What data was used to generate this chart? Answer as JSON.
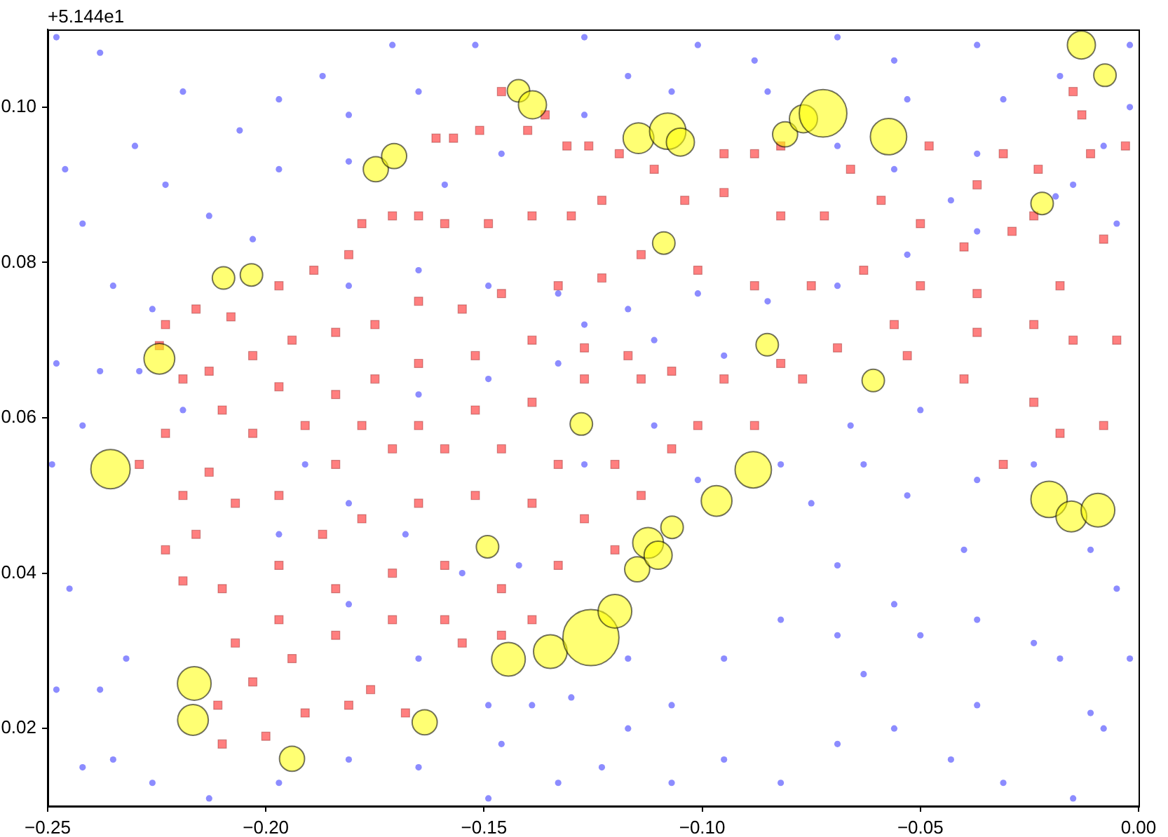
{
  "chart_data": {
    "type": "bubble",
    "annotations": [
      "+5.144e1"
    ],
    "xlim": [
      -0.25,
      0.0
    ],
    "ylim": [
      0.01,
      0.11
    ],
    "xticks": [
      {
        "value": -0.25,
        "label": "−0.25"
      },
      {
        "value": -0.2,
        "label": "−0.20"
      },
      {
        "value": -0.15,
        "label": "−0.15"
      },
      {
        "value": -0.1,
        "label": "−0.10"
      },
      {
        "value": -0.05,
        "label": "−0.05"
      },
      {
        "value": 0.0,
        "label": "0.00"
      }
    ],
    "yticks": [
      {
        "value": 0.02,
        "label": "0.02"
      },
      {
        "value": 0.04,
        "label": "0.04"
      },
      {
        "value": 0.06,
        "label": "0.06"
      },
      {
        "value": 0.08,
        "label": "0.08"
      },
      {
        "value": 0.1,
        "label": "0.10"
      }
    ],
    "legend": false,
    "series": [
      {
        "color": "#ffff00",
        "marker": "circle",
        "x": [
          -0.2356,
          -0.2164,
          -0.2167,
          -0.194,
          -0.1636,
          -0.1492,
          -0.1444,
          -0.1348,
          -0.1255,
          -0.12,
          -0.1149,
          -0.1124,
          -0.1101,
          -0.1069,
          -0.0967,
          -0.0883,
          -0.1277,
          -0.1088,
          -0.0851,
          -0.0608,
          -0.0221,
          -0.0205,
          -0.0154,
          -0.0093,
          -0.0131,
          -0.0077,
          -0.1146,
          -0.1079,
          -0.105,
          -0.081,
          -0.0768,
          -0.0723,
          -0.0573,
          -0.1421,
          -0.1389,
          -0.1748,
          -0.1706,
          -0.2097,
          -0.2033,
          -0.2244
        ],
        "values": [
          0.0534,
          0.0258,
          0.0211,
          0.0161,
          0.0208,
          0.0434,
          0.0289,
          0.0299,
          0.0317,
          0.0351,
          0.0405,
          0.0439,
          0.0423,
          0.0459,
          0.0493,
          0.0533,
          0.0592,
          0.0825,
          0.0694,
          0.0648,
          0.0876,
          0.0495,
          0.0473,
          0.0481,
          0.108,
          0.1041,
          0.096,
          0.0969,
          0.0955,
          0.0965,
          0.0985,
          0.0992,
          0.0962,
          0.1021,
          0.1003,
          0.092,
          0.0937,
          0.078,
          0.0784,
          0.0676
        ],
        "sizes": [
          0.49,
          0.36,
          0.3,
          0.2,
          0.2,
          0.16,
          0.36,
          0.36,
          1,
          0.36,
          0.2,
          0.3,
          0.25,
          0.16,
          0.3,
          0.42,
          0.16,
          0.16,
          0.16,
          0.16,
          0.16,
          0.42,
          0.3,
          0.36,
          0.25,
          0.16,
          0.3,
          0.42,
          0.25,
          0.2,
          0.25,
          0.72,
          0.42,
          0.16,
          0.25,
          0.2,
          0.2,
          0.16,
          0.16,
          0.3
        ]
      },
      {
        "type": "scatter",
        "color": "#ff0000",
        "marker": "square",
        "x": [
          -0.146,
          -0.136,
          -0.14,
          -0.151,
          -0.161,
          -0.157,
          -0.131,
          -0.126,
          -0.119,
          -0.095,
          -0.088,
          -0.082,
          -0.066,
          -0.048,
          -0.031,
          -0.015,
          -0.013,
          -0.024,
          -0.037,
          -0.029,
          -0.04,
          -0.05,
          -0.059,
          -0.072,
          -0.082,
          -0.095,
          -0.104,
          -0.111,
          -0.123,
          -0.13,
          -0.139,
          -0.149,
          -0.159,
          -0.165,
          -0.171,
          -0.178,
          -0.181,
          -0.189,
          -0.197,
          -0.208,
          -0.216,
          -0.223,
          -0.2244,
          -0.219,
          -0.213,
          -0.203,
          -0.194,
          -0.184,
          -0.175,
          -0.165,
          -0.155,
          -0.146,
          -0.133,
          -0.123,
          -0.114,
          -0.101,
          -0.088,
          -0.075,
          -0.063,
          -0.05,
          -0.037,
          -0.024,
          -0.015,
          -0.005,
          -0.069,
          -0.082,
          -0.095,
          -0.107,
          -0.117,
          -0.127,
          -0.139,
          -0.152,
          -0.165,
          -0.175,
          -0.184,
          -0.197,
          -0.21,
          -0.223,
          -0.229,
          -0.219,
          -0.213,
          -0.203,
          -0.191,
          -0.178,
          -0.165,
          -0.152,
          -0.139,
          -0.127,
          -0.114,
          -0.101,
          -0.088,
          -0.107,
          -0.12,
          -0.133,
          -0.146,
          -0.159,
          -0.171,
          -0.184,
          -0.197,
          -0.207,
          -0.216,
          -0.223,
          -0.219,
          -0.21,
          -0.197,
          -0.187,
          -0.178,
          -0.165,
          -0.152,
          -0.139,
          -0.127,
          -0.114,
          -0.12,
          -0.133,
          -0.146,
          -0.159,
          -0.171,
          -0.184,
          -0.197,
          -0.207,
          -0.203,
          -0.194,
          -0.184,
          -0.171,
          -0.159,
          -0.146,
          -0.139,
          -0.181,
          -0.191,
          -0.2,
          -0.21,
          -0.176,
          -0.168,
          -0.155,
          -0.211,
          -0.077,
          -0.024,
          -0.018,
          -0.008,
          -0.031,
          -0.053,
          -0.04,
          -0.056,
          -0.037,
          -0.018,
          -0.008,
          -0.023,
          -0.011,
          -0.003
        ],
        "values": [
          0.102,
          0.099,
          0.097,
          0.097,
          0.096,
          0.096,
          0.095,
          0.095,
          0.094,
          0.094,
          0.094,
          0.095,
          0.092,
          0.095,
          0.094,
          0.102,
          0.099,
          0.086,
          0.09,
          0.084,
          0.082,
          0.085,
          0.088,
          0.086,
          0.086,
          0.089,
          0.088,
          0.092,
          0.088,
          0.086,
          0.086,
          0.085,
          0.085,
          0.086,
          0.086,
          0.085,
          0.081,
          0.079,
          0.077,
          0.073,
          0.074,
          0.072,
          0.0693,
          0.065,
          0.066,
          0.068,
          0.07,
          0.071,
          0.072,
          0.075,
          0.074,
          0.076,
          0.077,
          0.078,
          0.081,
          0.079,
          0.077,
          0.077,
          0.079,
          0.077,
          0.076,
          0.072,
          0.07,
          0.07,
          0.069,
          0.067,
          0.065,
          0.066,
          0.068,
          0.069,
          0.07,
          0.068,
          0.067,
          0.065,
          0.063,
          0.064,
          0.061,
          0.058,
          0.054,
          0.05,
          0.053,
          0.058,
          0.059,
          0.059,
          0.059,
          0.061,
          0.062,
          0.065,
          0.065,
          0.059,
          0.059,
          0.056,
          0.054,
          0.054,
          0.056,
          0.056,
          0.056,
          0.054,
          0.05,
          0.049,
          0.045,
          0.043,
          0.039,
          0.038,
          0.041,
          0.045,
          0.047,
          0.049,
          0.05,
          0.049,
          0.047,
          0.05,
          0.043,
          0.041,
          0.038,
          0.041,
          0.04,
          0.038,
          0.034,
          0.031,
          0.026,
          0.029,
          0.032,
          0.034,
          0.034,
          0.032,
          0.034,
          0.023,
          0.022,
          0.019,
          0.018,
          0.025,
          0.022,
          0.031,
          0.023,
          0.065,
          0.062,
          0.058,
          0.059,
          0.054,
          0.068,
          0.065,
          0.072,
          0.071,
          0.077,
          0.083,
          0.092,
          0.094,
          0.095
        ]
      },
      {
        "type": "scatter",
        "color": "#0000ff",
        "marker": "circle",
        "x": [
          -0.248,
          -0.238,
          -0.23,
          -0.219,
          -0.206,
          -0.197,
          -0.187,
          -0.181,
          -0.171,
          -0.165,
          -0.152,
          -0.127,
          -0.117,
          -0.101,
          -0.088,
          -0.069,
          -0.056,
          -0.037,
          -0.018,
          -0.002,
          -0.248,
          -0.238,
          -0.229,
          -0.219,
          -0.242,
          -0.249,
          -0.245,
          -0.248,
          -0.238,
          -0.232,
          -0.242,
          -0.235,
          -0.226,
          -0.069,
          -0.053,
          -0.037,
          -0.019,
          -0.008,
          -0.002,
          -0.149,
          -0.146,
          -0.139,
          -0.13,
          -0.117,
          -0.082,
          -0.075,
          -0.069,
          -0.056,
          -0.05,
          -0.037,
          -0.024,
          -0.018,
          -0.005,
          -0.002,
          -0.011,
          -0.037,
          -0.056,
          -0.069,
          -0.082,
          -0.095,
          -0.107,
          -0.107,
          -0.117,
          -0.123,
          -0.095,
          -0.082,
          -0.069,
          -0.063,
          -0.043,
          -0.031,
          -0.015,
          -0.008,
          -0.053,
          -0.037,
          -0.024,
          -0.011,
          -0.063,
          -0.04,
          -0.066,
          -0.05,
          -0.181,
          -0.165,
          -0.149,
          -0.133,
          -0.117,
          -0.101,
          -0.085,
          -0.165,
          -0.149,
          -0.133,
          -0.127,
          -0.111,
          -0.095,
          -0.191,
          -0.181,
          -0.168,
          -0.155,
          -0.142,
          -0.127,
          -0.111,
          -0.101,
          -0.197,
          -0.181,
          -0.165,
          -0.149,
          -0.181,
          -0.197,
          -0.213,
          -0.165,
          -0.133,
          -0.213,
          -0.197,
          -0.181,
          -0.159,
          -0.146,
          -0.127,
          -0.107,
          -0.085,
          -0.069,
          -0.053,
          -0.037,
          -0.031,
          -0.015,
          -0.005,
          -0.043,
          -0.056,
          -0.203,
          -0.223,
          -0.235,
          -0.226,
          -0.242,
          -0.246
        ],
        "values": [
          0.109,
          0.107,
          0.095,
          0.102,
          0.097,
          0.101,
          0.104,
          0.093,
          0.108,
          0.102,
          0.108,
          0.109,
          0.104,
          0.108,
          0.106,
          0.109,
          0.106,
          0.108,
          0.104,
          0.108,
          0.067,
          0.066,
          0.066,
          0.061,
          0.059,
          0.054,
          0.038,
          0.025,
          0.025,
          0.029,
          0.015,
          0.016,
          0.013,
          0.077,
          0.081,
          0.084,
          0.0885,
          0.095,
          0.1,
          0.011,
          0.018,
          0.023,
          0.024,
          0.029,
          0.054,
          0.049,
          0.041,
          0.036,
          0.032,
          0.034,
          0.031,
          0.029,
          0.038,
          0.029,
          0.022,
          0.023,
          0.02,
          0.018,
          0.013,
          0.016,
          0.023,
          0.013,
          0.02,
          0.015,
          0.029,
          0.034,
          0.032,
          0.027,
          0.016,
          0.013,
          0.011,
          0.02,
          0.05,
          0.052,
          0.054,
          0.043,
          0.054,
          0.043,
          0.059,
          0.061,
          0.077,
          0.079,
          0.077,
          0.076,
          0.074,
          0.076,
          0.075,
          0.063,
          0.065,
          0.067,
          0.072,
          0.07,
          0.068,
          0.054,
          0.049,
          0.045,
          0.04,
          0.041,
          0.054,
          0.059,
          0.052,
          0.045,
          0.036,
          0.029,
          0.023,
          0.016,
          0.013,
          0.011,
          0.015,
          0.013,
          0.086,
          0.092,
          0.099,
          0.09,
          0.094,
          0.099,
          0.102,
          0.102,
          0.095,
          0.101,
          0.094,
          0.101,
          0.09,
          0.085,
          0.088,
          0.092,
          0.083,
          0.09,
          0.077,
          0.074,
          0.085,
          0.092
        ]
      }
    ]
  }
}
